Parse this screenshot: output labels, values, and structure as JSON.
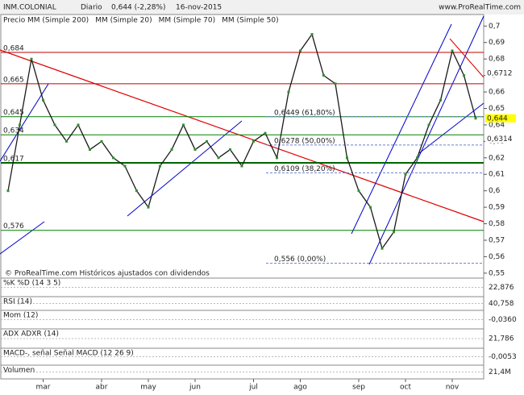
{
  "chart_data": {
    "type": "line",
    "title": "INM.COLONIAL",
    "subtitle": "Diario",
    "last_price_text": "0,644 (-2,28%)",
    "date_text": "16-nov-2015",
    "site": "www.ProRealTime.com",
    "panel_label": "Precio",
    "footer": "© ProRealTime.com  Históricos ajustados con dividendos",
    "legend": [
      {
        "name": "MM (Simple 200)",
        "color": "#2e8b2e"
      },
      {
        "name": "MM (Simple 20)",
        "color": "#c00000"
      },
      {
        "name": "MM (Simple 70)",
        "color": "#00008b"
      },
      {
        "name": "MM (Simple 50)",
        "color": "#999999"
      }
    ],
    "categories": [
      null,
      null,
      null,
      "mar",
      null,
      null,
      null,
      null,
      "abr",
      null,
      null,
      null,
      "may",
      null,
      null,
      null,
      "jun",
      null,
      null,
      null,
      null,
      "jul",
      null,
      null,
      null,
      "ago",
      null,
      null,
      null,
      null,
      "sep",
      null,
      null,
      null,
      "oct",
      null,
      null,
      null,
      "nov",
      null,
      null
    ],
    "series": [
      {
        "name": "Precio",
        "color": "#1a1a1a",
        "values": [
          0.6,
          0.64,
          0.68,
          0.655,
          0.64,
          0.63,
          0.64,
          0.625,
          0.63,
          0.62,
          0.615,
          0.6,
          0.59,
          0.615,
          0.625,
          0.64,
          0.625,
          0.63,
          0.62,
          0.625,
          0.615,
          0.63,
          0.635,
          0.62,
          0.66,
          0.685,
          0.695,
          0.67,
          0.665,
          0.62,
          0.6,
          0.59,
          0.565,
          0.575,
          0.61,
          0.62,
          0.64,
          0.655,
          0.685,
          0.67,
          0.644
        ]
      }
    ],
    "ylim": [
      0.547,
      0.707
    ],
    "yticks": [
      {
        "value": 0.55,
        "label": "0,55"
      },
      {
        "value": 0.56,
        "label": "0,56"
      },
      {
        "value": 0.57,
        "label": "0,57"
      },
      {
        "value": 0.58,
        "label": "0,58"
      },
      {
        "value": 0.59,
        "label": "0,59"
      },
      {
        "value": 0.6,
        "label": "0,6"
      },
      {
        "value": 0.61,
        "label": "0,61"
      },
      {
        "value": 0.62,
        "label": "0,62"
      },
      {
        "value": 0.63,
        "label": "0,63"
      },
      {
        "value": 0.64,
        "label": "0,64"
      },
      {
        "value": 0.65,
        "label": "0,65"
      },
      {
        "value": 0.66,
        "label": "0,66"
      },
      {
        "value": 0.67,
        "label": "0,67"
      },
      {
        "value": 0.68,
        "label": "0,68"
      },
      {
        "value": 0.69,
        "label": "0,69"
      },
      {
        "value": 0.7,
        "label": "0,7"
      }
    ],
    "levels": [
      {
        "value": 0.684,
        "label": "0,684",
        "color": "#c00000"
      },
      {
        "value": 0.665,
        "label": "0,665",
        "color": "#c00000"
      },
      {
        "value": 0.645,
        "label": "0,645",
        "color": "#008000"
      },
      {
        "value": 0.634,
        "label": "0,634",
        "color": "#008000"
      },
      {
        "value": 0.617,
        "label": "0,617",
        "color": "#006400"
      },
      {
        "value": 0.576,
        "label": "0,576",
        "color": "#008000"
      }
    ],
    "fibonacci": [
      {
        "value": 0.6449,
        "label": "0,6449 (61,80%)"
      },
      {
        "value": 0.6278,
        "label": "0,6278 (50,00%)"
      },
      {
        "value": 0.6109,
        "label": "0,6109 (38,20%)"
      },
      {
        "value": 0.556,
        "label": "0,556 (0,00%)"
      }
    ],
    "right_labels": [
      {
        "value": 0.6712,
        "label": "0,6712",
        "color": "#c00000"
      },
      {
        "value": 0.644,
        "label": "0,644",
        "color": "#ffff00"
      },
      {
        "value": 0.6314,
        "label": "0,6314",
        "color": "#2e8b2e"
      }
    ],
    "indicators": [
      {
        "name": "%K  %D (14 3 5)",
        "last": "22,876"
      },
      {
        "name": "RSI (14)",
        "last": "40,758"
      },
      {
        "name": "Mom (12)",
        "last": "-0,0360"
      },
      {
        "name": "ADX  ADXR (14)",
        "last": "21,786"
      },
      {
        "name": "MACD-, señal  Señal  MACD (12 26 9)",
        "last": "-0,0053"
      },
      {
        "name": "Volumen",
        "last": "21,4M"
      }
    ]
  }
}
